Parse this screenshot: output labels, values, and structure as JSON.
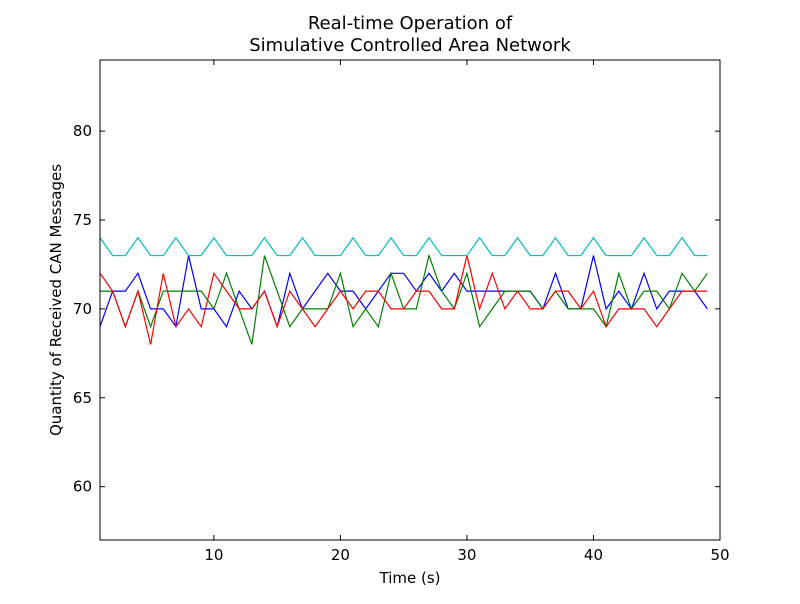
{
  "chart_data": {
    "type": "line",
    "title": "Real-time Operation of\nSimulative Controlled Area Network",
    "title_lines": [
      "Real-time Operation of",
      "Simulative Controlled Area Network"
    ],
    "xlabel": "Time (s)",
    "ylabel": "Quantity of Received CAN Messages",
    "xlim": [
      1,
      50
    ],
    "ylim": [
      57,
      84
    ],
    "xticks": [
      10,
      20,
      30,
      40,
      50
    ],
    "yticks": [
      60,
      65,
      70,
      75,
      80
    ],
    "grid": false,
    "x": [
      1,
      2,
      3,
      4,
      5,
      6,
      7,
      8,
      9,
      10,
      11,
      12,
      13,
      14,
      15,
      16,
      17,
      18,
      19,
      20,
      21,
      22,
      23,
      24,
      25,
      26,
      27,
      28,
      29,
      30,
      31,
      32,
      33,
      34,
      35,
      36,
      37,
      38,
      39,
      40,
      41,
      42,
      43,
      44,
      45,
      46,
      47,
      48,
      49
    ],
    "series": [
      {
        "color": "#0000ff",
        "values": [
          69,
          71,
          71,
          72,
          70,
          70,
          69,
          73,
          70,
          70,
          69,
          71,
          70,
          71,
          69,
          72,
          70,
          71,
          72,
          71,
          71,
          70,
          71,
          72,
          72,
          71,
          72,
          71,
          72,
          71,
          71,
          71,
          71,
          71,
          71,
          70,
          72,
          70,
          70,
          73,
          70,
          71,
          70,
          72,
          70,
          71,
          71,
          71,
          70
        ]
      },
      {
        "color": "#008000",
        "values": [
          71,
          71,
          69,
          71,
          69,
          71,
          71,
          71,
          71,
          70,
          72,
          70,
          68,
          73,
          71,
          69,
          70,
          70,
          70,
          72,
          69,
          70,
          69,
          72,
          70,
          70,
          73,
          71,
          70,
          72,
          69,
          70,
          71,
          71,
          71,
          70,
          71,
          70,
          70,
          70,
          69,
          72,
          70,
          71,
          71,
          70,
          72,
          71,
          72
        ]
      },
      {
        "color": "#ff0000",
        "values": [
          72,
          71,
          69,
          71,
          68,
          72,
          69,
          70,
          69,
          72,
          71,
          70,
          70,
          71,
          69,
          71,
          70,
          69,
          70,
          71,
          70,
          71,
          71,
          70,
          70,
          71,
          71,
          70,
          70,
          73,
          70,
          72,
          70,
          71,
          70,
          70,
          71,
          71,
          70,
          71,
          69,
          70,
          70,
          70,
          69,
          70,
          71,
          71,
          71
        ]
      },
      {
        "color": "#00bfbf",
        "values": [
          74,
          73,
          73,
          74,
          73,
          73,
          74,
          73,
          73,
          74,
          73,
          73,
          73,
          74,
          73,
          73,
          74,
          73,
          73,
          73,
          74,
          73,
          73,
          74,
          73,
          73,
          74,
          73,
          73,
          73,
          74,
          73,
          73,
          74,
          73,
          73,
          74,
          73,
          73,
          74,
          73,
          73,
          73,
          74,
          73,
          73,
          74,
          73,
          73
        ]
      }
    ]
  }
}
